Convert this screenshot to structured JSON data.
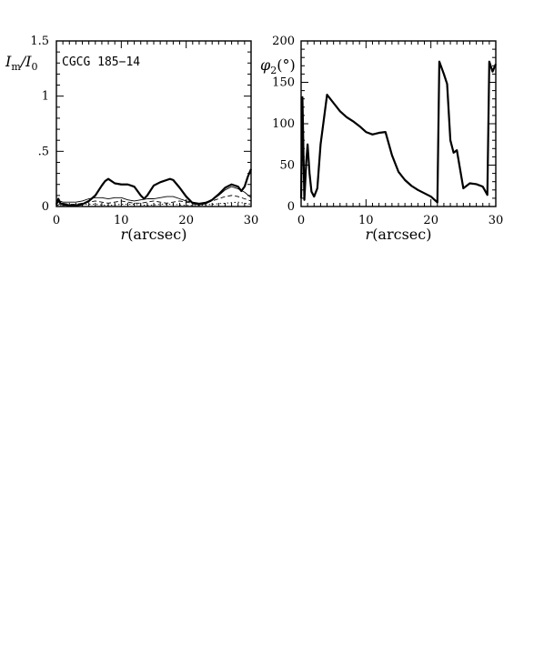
{
  "chart_data": [
    {
      "type": "line",
      "ylabel_main": "I",
      "ylabel_sub1": "m",
      "ylabel_sep": "/",
      "ylabel_main2": "I",
      "ylabel_sub2": "0",
      "xlabel_main": "r",
      "xlabel_unit": "(arcsec)",
      "annotation": "CGCG 185−14",
      "xlim": [
        0,
        30
      ],
      "ylim": [
        0,
        1.5
      ],
      "xticks": [
        0,
        10,
        20,
        30
      ],
      "xtick_labels": [
        "0",
        "10",
        "20",
        "30"
      ],
      "yticks": [
        0,
        0.5,
        1,
        1.5
      ],
      "ytick_labels": [
        "0",
        ".5",
        "1",
        "1.5"
      ],
      "series": [
        {
          "style": "solid-thick",
          "x": [
            0,
            0.3,
            0.6,
            1,
            2,
            3,
            4,
            5,
            6,
            7,
            7.5,
            8,
            9,
            10,
            11,
            12,
            13,
            13.5,
            14,
            15,
            16,
            17,
            17.5,
            18,
            19,
            20,
            21,
            22,
            23,
            24,
            25,
            26,
            27,
            28,
            28.5,
            29,
            29.5,
            30
          ],
          "y": [
            0.02,
            0.07,
            0.03,
            0.02,
            0.01,
            0.01,
            0.02,
            0.05,
            0.1,
            0.19,
            0.23,
            0.25,
            0.21,
            0.2,
            0.2,
            0.18,
            0.1,
            0.07,
            0.1,
            0.19,
            0.22,
            0.24,
            0.25,
            0.24,
            0.17,
            0.09,
            0.03,
            0.02,
            0.03,
            0.06,
            0.11,
            0.17,
            0.2,
            0.18,
            0.14,
            0.18,
            0.27,
            0.34
          ]
        },
        {
          "style": "solid-thin",
          "x": [
            0,
            0.5,
            1,
            2,
            3,
            4,
            5,
            6,
            7,
            8,
            9,
            10,
            11,
            12,
            13,
            14,
            15,
            16,
            17,
            18,
            19,
            20,
            21,
            22,
            23,
            24,
            25,
            26,
            27,
            28,
            29,
            30
          ],
          "y": [
            0.02,
            0.05,
            0.04,
            0.04,
            0.04,
            0.05,
            0.07,
            0.08,
            0.08,
            0.07,
            0.08,
            0.08,
            0.06,
            0.05,
            0.06,
            0.07,
            0.07,
            0.08,
            0.09,
            0.09,
            0.07,
            0.05,
            0.04,
            0.03,
            0.04,
            0.06,
            0.1,
            0.15,
            0.18,
            0.16,
            0.13,
            0.08
          ]
        },
        {
          "style": "dashed",
          "x": [
            0,
            1,
            2,
            3,
            4,
            5,
            6,
            7,
            8,
            9,
            10,
            11,
            12,
            13,
            14,
            15,
            16,
            17,
            18,
            19,
            20,
            21,
            22,
            23,
            24,
            25,
            26,
            27,
            28,
            29,
            30
          ],
          "y": [
            0.01,
            0.03,
            0.02,
            0.02,
            0.03,
            0.04,
            0.05,
            0.04,
            0.03,
            0.04,
            0.05,
            0.04,
            0.03,
            0.03,
            0.04,
            0.05,
            0.04,
            0.03,
            0.04,
            0.05,
            0.04,
            0.03,
            0.02,
            0.03,
            0.05,
            0.07,
            0.09,
            0.1,
            0.09,
            0.07,
            0.05
          ]
        },
        {
          "style": "dotted",
          "x": [
            0,
            2,
            4,
            6,
            8,
            10,
            12,
            14,
            16,
            18,
            20,
            22,
            24,
            26,
            28,
            30
          ],
          "y": [
            0.01,
            0.01,
            0.02,
            0.02,
            0.01,
            0.02,
            0.02,
            0.01,
            0.02,
            0.02,
            0.01,
            0.01,
            0.02,
            0.03,
            0.04,
            0.02
          ]
        }
      ]
    },
    {
      "type": "line",
      "ylabel_main": "φ",
      "ylabel_sub1": "2",
      "ylabel_unit": "(°)",
      "xlabel_main": "r",
      "xlabel_unit": "(arcsec)",
      "xlim": [
        0,
        30
      ],
      "ylim": [
        0,
        200
      ],
      "xticks": [
        0,
        10,
        20,
        30
      ],
      "xtick_labels": [
        "0",
        "10",
        "20",
        "30"
      ],
      "yticks": [
        0,
        50,
        100,
        150,
        200
      ],
      "ytick_labels": [
        "0",
        "50",
        "100",
        "150",
        "200"
      ],
      "series": [
        {
          "style": "solid-thick",
          "x": [
            0,
            0.2,
            0.5,
            0.8,
            1,
            1.3,
            1.6,
            2,
            2.5,
            3,
            4,
            5,
            6,
            7,
            8,
            9,
            10,
            11,
            12,
            13,
            14,
            15,
            16,
            17,
            18,
            19,
            20,
            21,
            21.3,
            22,
            22.5,
            23,
            23.5,
            24,
            25,
            26,
            27,
            28,
            28.7,
            29,
            29.5,
            30
          ],
          "y": [
            10,
            132,
            8,
            55,
            75,
            40,
            18,
            12,
            22,
            75,
            135,
            125,
            115,
            108,
            103,
            97,
            90,
            87,
            89,
            90,
            62,
            42,
            32,
            25,
            20,
            16,
            12,
            5,
            175,
            160,
            148,
            80,
            65,
            68,
            22,
            28,
            27,
            24,
            14,
            175,
            163,
            172
          ]
        }
      ]
    }
  ]
}
